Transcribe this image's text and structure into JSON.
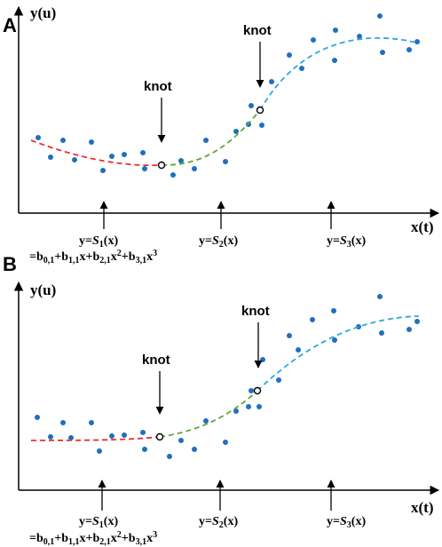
{
  "colors": {
    "segment1": "#e8302a",
    "segment2": "#5fa53c",
    "segment3": "#2ea7e0",
    "points": "#1f6fc0",
    "axis": "#000000"
  },
  "panels": [
    {
      "letter": "A",
      "y_axis_label": "y(u)",
      "x_axis_label": "x(t)",
      "knot_label": "knot",
      "segment_labels": [
        {
          "prefix": "y=",
          "func": "S",
          "sub": "1",
          "suffix": "(x)"
        },
        {
          "prefix": "y=",
          "func": "S",
          "sub": "2",
          "suffix": "(x)"
        },
        {
          "prefix": "y=",
          "func": "S",
          "sub": "3",
          "suffix": "(x)"
        }
      ],
      "formula": {
        "p0": "=b",
        "s0": "0,1",
        "p1": "+b",
        "s1": "1,1",
        "p2": "x+b",
        "s2": "2,1",
        "p3": "x",
        "e2": "2",
        "p4": "+b",
        "s3": "3,1",
        "p5": "x",
        "e3": "3"
      }
    },
    {
      "letter": "B",
      "y_axis_label": "y(u)",
      "x_axis_label": "x(t)",
      "knot_label": "knot",
      "segment_labels": [
        {
          "prefix": "y=",
          "func": "S",
          "sub": "1",
          "suffix": "(x)"
        },
        {
          "prefix": "y=",
          "func": "S",
          "sub": "2",
          "suffix": "(x)"
        },
        {
          "prefix": "y=",
          "func": "S",
          "sub": "3",
          "suffix": "(x)"
        }
      ],
      "formula": {
        "p0": "=b",
        "s0": "0,1",
        "p1": "+b",
        "s1": "1,1",
        "p2": "x+b",
        "s2": "2,1",
        "p3": "x",
        "e2": "2",
        "p4": "+b",
        "s3": "3,1",
        "p5": "x",
        "e3": "3"
      }
    }
  ]
}
